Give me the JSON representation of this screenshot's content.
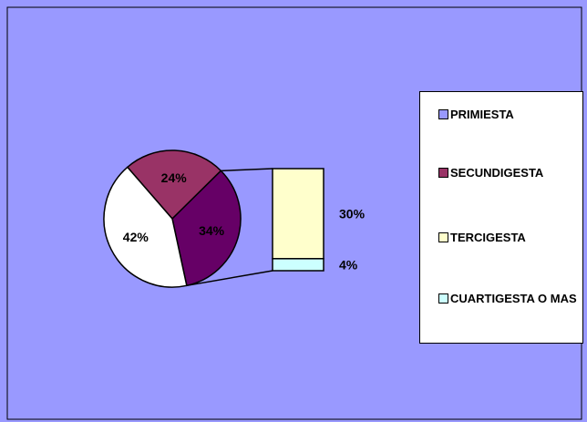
{
  "colors": {
    "background": "#9999ff",
    "border": "#000000"
  },
  "chart_data": {
    "type": "bar-of-pie",
    "pie": [
      {
        "name": "PRIMIESTA",
        "value": 24,
        "label": "24%",
        "color": "#9999ff"
      },
      {
        "name": "SECUNDIGESTA",
        "value": 34,
        "label": "34%",
        "color": "#993366"
      },
      {
        "name": "TERCIGESTA",
        "value": 42,
        "label": "42%",
        "color": "#ffffcc"
      }
    ],
    "pie_display": [
      {
        "value": 24,
        "label": "24%",
        "color": "#993366"
      },
      {
        "value": 34,
        "label": "34%",
        "color": "#660066"
      },
      {
        "value": 42,
        "label": "42%",
        "color": "#ffffff"
      }
    ],
    "bar": [
      {
        "name": "TERCIGESTA",
        "value": 30,
        "label": "30%",
        "color": "#ffffcc"
      },
      {
        "name": "CUARTIGESTA O MAS",
        "value": 4,
        "label": "4%",
        "color": "#ccffff"
      }
    ],
    "legend": {
      "position": "right",
      "items": [
        {
          "label": "PRIMIESTA",
          "color": "#9999ff"
        },
        {
          "label": "SECUNDIGESTA",
          "color": "#993366"
        },
        {
          "label": "TERCIGESTA",
          "color": "#ffffcc"
        },
        {
          "label": "CUARTIGESTA O MAS",
          "color": "#ccffff"
        }
      ]
    },
    "title": "",
    "grid": false
  }
}
